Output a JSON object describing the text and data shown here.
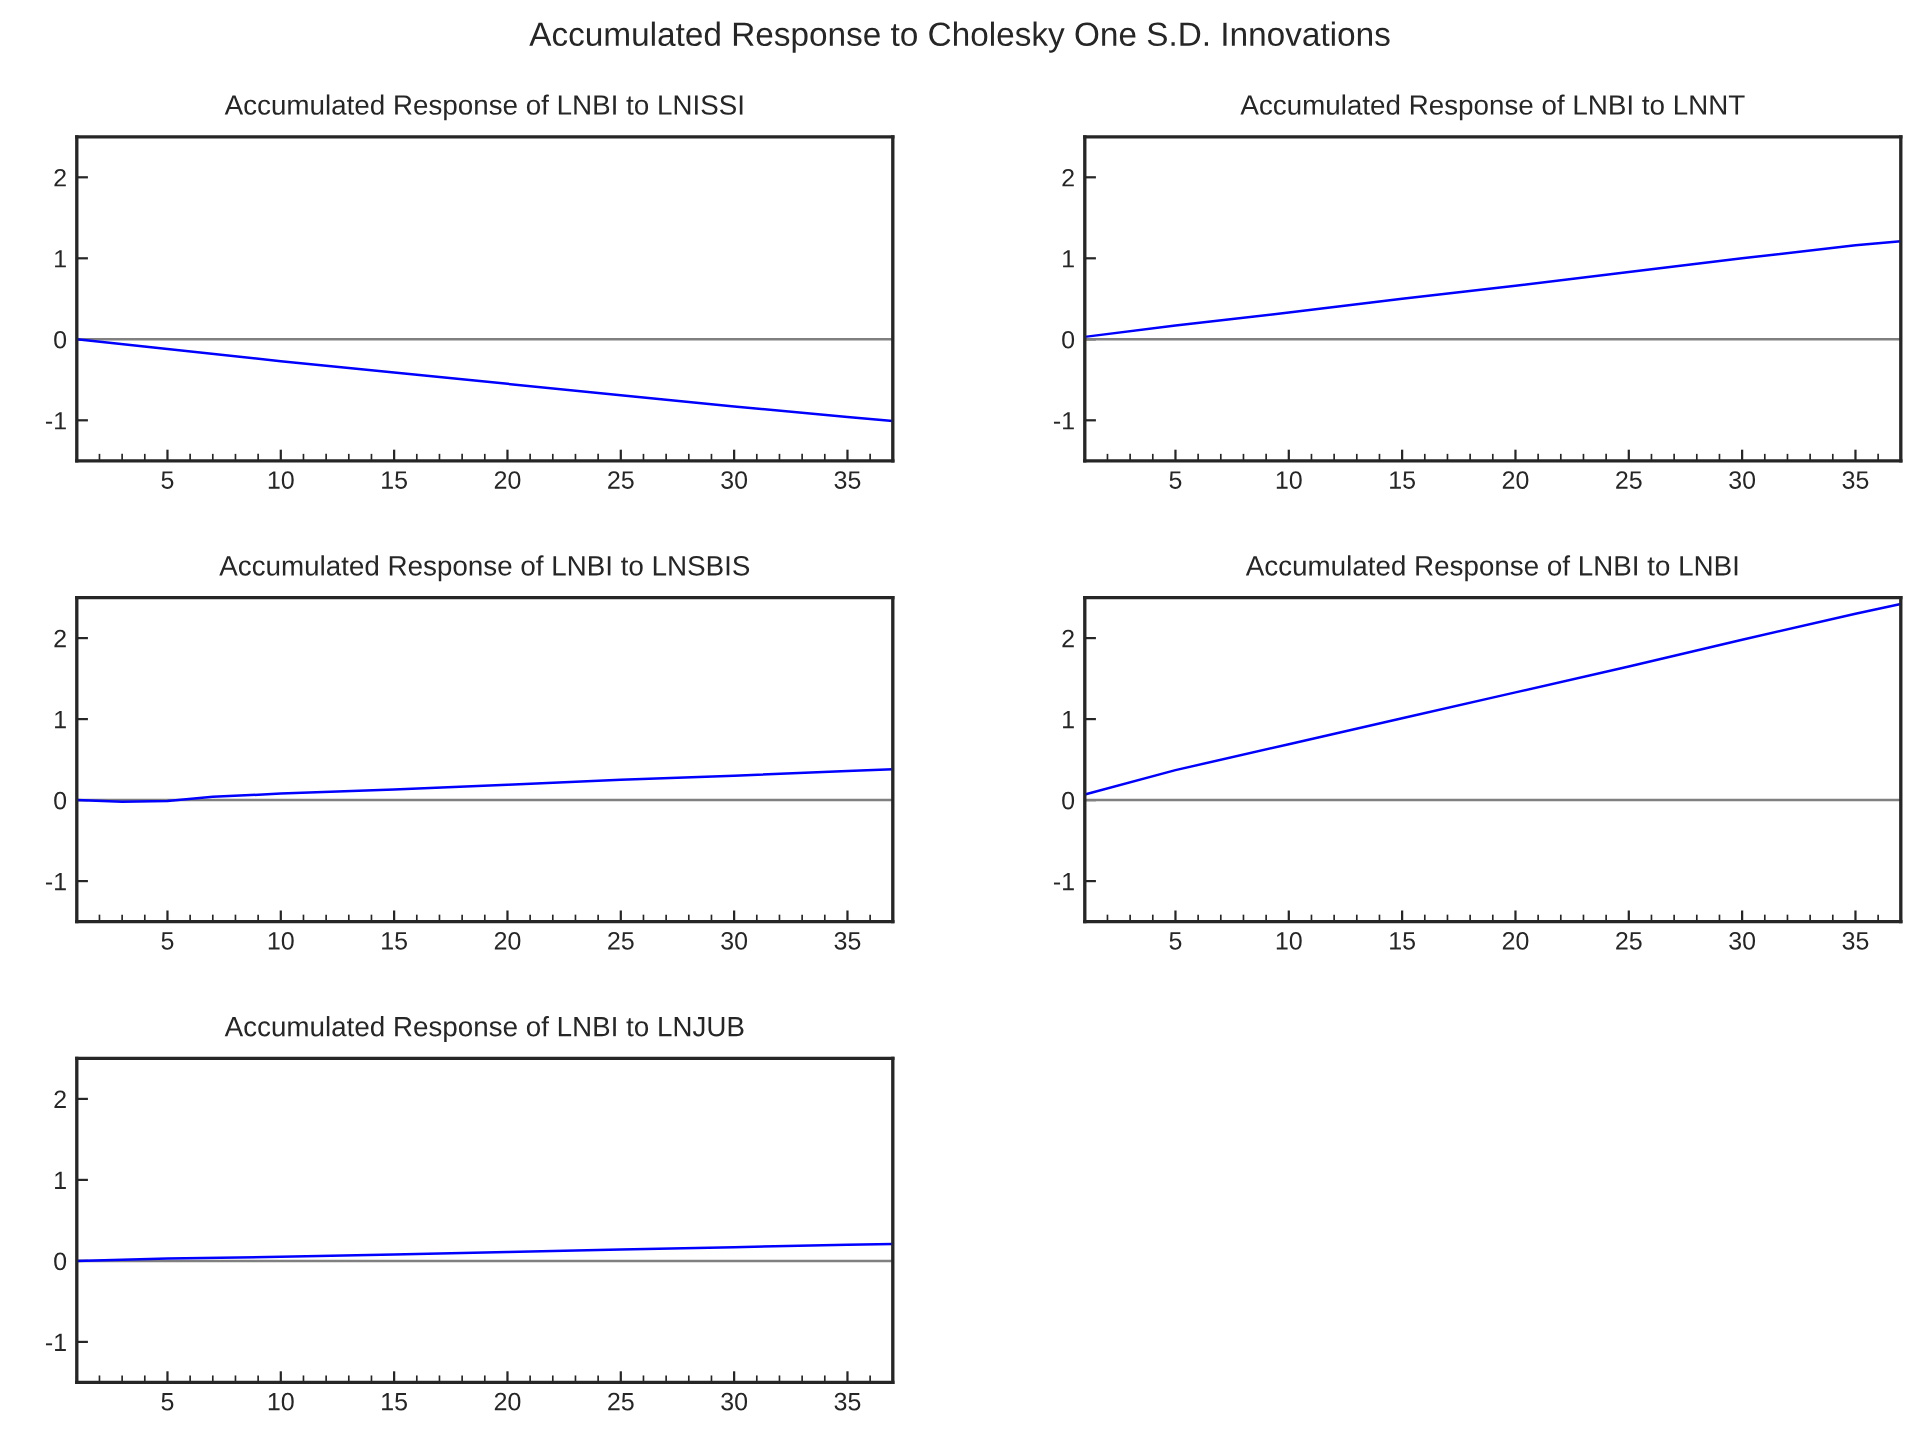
{
  "chart_data": [
    {
      "type": "line",
      "title": "Accumulated Response of LNBI to LNISSI",
      "annotations": [
        "Accumulated Response to Cholesky One S.D. Innovations"
      ],
      "xlim": [
        1,
        37
      ],
      "ylim": [
        -1.5,
        2.5
      ],
      "xticks": [
        5,
        10,
        15,
        20,
        25,
        30,
        35
      ],
      "yticks": [
        -1,
        0,
        1,
        2
      ],
      "grid": false,
      "legend": false,
      "ref_lines": [
        {
          "axis": "y",
          "value": 0,
          "color": "#808080"
        }
      ],
      "series": [
        {
          "color": "#0000ff",
          "x": [
            1,
            5,
            10,
            15,
            20,
            25,
            30,
            35,
            37
          ],
          "values": [
            0,
            -0.12,
            -0.27,
            -0.41,
            -0.55,
            -0.69,
            -0.83,
            -0.96,
            -1.01
          ]
        }
      ]
    },
    {
      "type": "line",
      "title": "Accumulated Response of LNBI to LNNT",
      "xlim": [
        1,
        37
      ],
      "ylim": [
        -1.5,
        2.5
      ],
      "xticks": [
        5,
        10,
        15,
        20,
        25,
        30,
        35
      ],
      "yticks": [
        -1,
        0,
        1,
        2
      ],
      "grid": false,
      "legend": false,
      "ref_lines": [
        {
          "axis": "y",
          "value": 0,
          "color": "#808080"
        }
      ],
      "series": [
        {
          "color": "#0000ff",
          "x": [
            1,
            5,
            10,
            15,
            20,
            25,
            30,
            35,
            37
          ],
          "values": [
            0.03,
            0.17,
            0.33,
            0.5,
            0.66,
            0.83,
            1.0,
            1.16,
            1.21
          ]
        }
      ]
    },
    {
      "type": "line",
      "title": "Accumulated Response of LNBI to LNSBIS",
      "xlim": [
        1,
        37
      ],
      "ylim": [
        -1.5,
        2.5
      ],
      "xticks": [
        5,
        10,
        15,
        20,
        25,
        30,
        35
      ],
      "yticks": [
        -1,
        0,
        1,
        2
      ],
      "grid": false,
      "legend": false,
      "ref_lines": [
        {
          "axis": "y",
          "value": 0,
          "color": "#808080"
        }
      ],
      "series": [
        {
          "color": "#0000ff",
          "x": [
            1,
            3,
            5,
            7,
            10,
            15,
            20,
            25,
            30,
            35,
            37
          ],
          "values": [
            0,
            -0.02,
            -0.01,
            0.04,
            0.08,
            0.13,
            0.19,
            0.25,
            0.3,
            0.36,
            0.38
          ]
        }
      ]
    },
    {
      "type": "line",
      "title": "Accumulated Response of LNBI to LNBI",
      "xlim": [
        1,
        37
      ],
      "ylim": [
        -1.5,
        2.5
      ],
      "xticks": [
        5,
        10,
        15,
        20,
        25,
        30,
        35
      ],
      "yticks": [
        -1,
        0,
        1,
        2
      ],
      "grid": false,
      "legend": false,
      "ref_lines": [
        {
          "axis": "y",
          "value": 0,
          "color": "#808080"
        }
      ],
      "series": [
        {
          "color": "#0000ff",
          "x": [
            1,
            5,
            10,
            15,
            20,
            25,
            30,
            35,
            37
          ],
          "values": [
            0.07,
            0.37,
            0.69,
            1.01,
            1.33,
            1.65,
            1.98,
            2.3,
            2.42
          ]
        }
      ]
    },
    {
      "type": "line",
      "title": "Accumulated Response of LNBI to LNJUB",
      "xlim": [
        1,
        37
      ],
      "ylim": [
        -1.5,
        2.5
      ],
      "xticks": [
        5,
        10,
        15,
        20,
        25,
        30,
        35
      ],
      "yticks": [
        -1,
        0,
        1,
        2
      ],
      "grid": false,
      "legend": false,
      "ref_lines": [
        {
          "axis": "y",
          "value": 0,
          "color": "#808080"
        }
      ],
      "series": [
        {
          "color": "#0000ff",
          "x": [
            1,
            5,
            10,
            15,
            20,
            25,
            30,
            35,
            37
          ],
          "values": [
            0,
            0.03,
            0.05,
            0.08,
            0.11,
            0.14,
            0.17,
            0.2,
            0.21
          ]
        }
      ]
    }
  ]
}
